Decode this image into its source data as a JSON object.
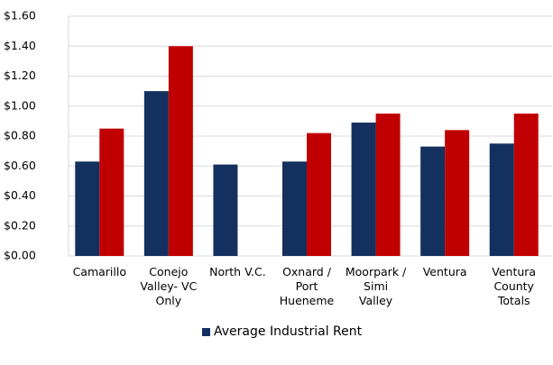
{
  "chart_data": {
    "type": "bar",
    "categories": [
      "Camarillo",
      "Conejo Valley- VC Only",
      "North V.C.",
      "Oxnard / Port Hueneme",
      "Moorpark / Simi Valley",
      "Ventura",
      "Ventura County Totals"
    ],
    "series": [
      {
        "name": "Average Industrial Rent",
        "color": "#13305f",
        "values": [
          0.63,
          1.1,
          0.61,
          0.63,
          0.89,
          0.73,
          0.75
        ]
      },
      {
        "color": "#c00000",
        "values": [
          0.85,
          1.4,
          null,
          0.82,
          0.95,
          0.84,
          0.95
        ]
      }
    ],
    "ylim": [
      0,
      1.6
    ],
    "yticks": [
      {
        "value": 0,
        "label": "$0.00"
      },
      {
        "value": 0.2,
        "label": "$0.20"
      },
      {
        "value": 0.4,
        "label": "$0.40"
      },
      {
        "value": 0.6,
        "label": "$0.60"
      },
      {
        "value": 0.8,
        "label": "$0.80"
      },
      {
        "value": 1.0,
        "label": "$1.00"
      },
      {
        "value": 1.2,
        "label": "$1.20"
      },
      {
        "value": 1.4,
        "label": "$1.40"
      },
      {
        "value": 1.6,
        "label": "$1.60"
      }
    ],
    "grid": true,
    "legend": "bottom"
  }
}
